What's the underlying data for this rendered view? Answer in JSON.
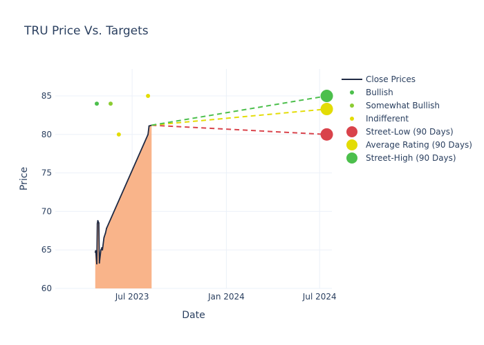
{
  "chart_data": {
    "type": "line",
    "title": "TRU Price Vs. Targets",
    "xlabel": "Date",
    "ylabel": "Price",
    "xlim": [
      "2023-02-01",
      "2024-07-25"
    ],
    "ylim": [
      60,
      88.5
    ],
    "x_ticks": [
      {
        "date": "2023-07-01",
        "label": "Jul 2023"
      },
      {
        "date": "2024-01-01",
        "label": "Jan 2024"
      },
      {
        "date": "2024-07-01",
        "label": "Jul 2024"
      }
    ],
    "y_ticks": [
      60,
      65,
      70,
      75,
      80,
      85
    ],
    "grid": true,
    "legend_position": "top-right",
    "close_prices": {
      "name": "Close Prices",
      "color": "#1f2a44",
      "fill_color": "#f9b48a",
      "x": [
        "2023-04-20",
        "2023-04-21",
        "2023-04-23",
        "2023-04-24",
        "2023-04-25",
        "2023-04-27",
        "2023-04-28",
        "2023-05-01",
        "2023-05-02",
        "2023-05-03",
        "2023-05-04",
        "2023-05-07",
        "2023-05-10",
        "2023-05-12",
        "2023-08-01",
        "2023-08-03",
        "2023-08-08"
      ],
      "y": [
        64.7,
        64.9,
        63.2,
        68.4,
        68.8,
        68.5,
        63.3,
        65.0,
        65.1,
        65.3,
        65.0,
        66.6,
        67.2,
        67.8,
        80.0,
        81.1,
        81.2
      ]
    },
    "ratings": [
      {
        "name": "Bullish",
        "color": "#4cbf4c",
        "points": [
          {
            "date": "2023-04-23",
            "value": 84
          }
        ]
      },
      {
        "name": "Somewhat Bullish",
        "color": "#8ccc33",
        "points": [
          {
            "date": "2023-05-20",
            "value": 84
          }
        ]
      },
      {
        "name": "Indifferent",
        "color": "#e3dc05",
        "points": [
          {
            "date": "2023-06-05",
            "value": 80
          },
          {
            "date": "2023-08-01",
            "value": 85
          }
        ]
      }
    ],
    "targets": [
      {
        "name": "Street-Low (90 Days)",
        "color": "#d9434b",
        "value": 80,
        "date": "2024-07-15"
      },
      {
        "name": "Average Rating (90 Days)",
        "color": "#e3dc05",
        "value": 83.3,
        "date": "2024-07-15"
      },
      {
        "name": "Street-High (90 Days)",
        "color": "#4cbf4c",
        "value": 85,
        "date": "2024-07-15"
      }
    ],
    "projection_start": {
      "date": "2023-08-08",
      "value": 81.2
    }
  }
}
